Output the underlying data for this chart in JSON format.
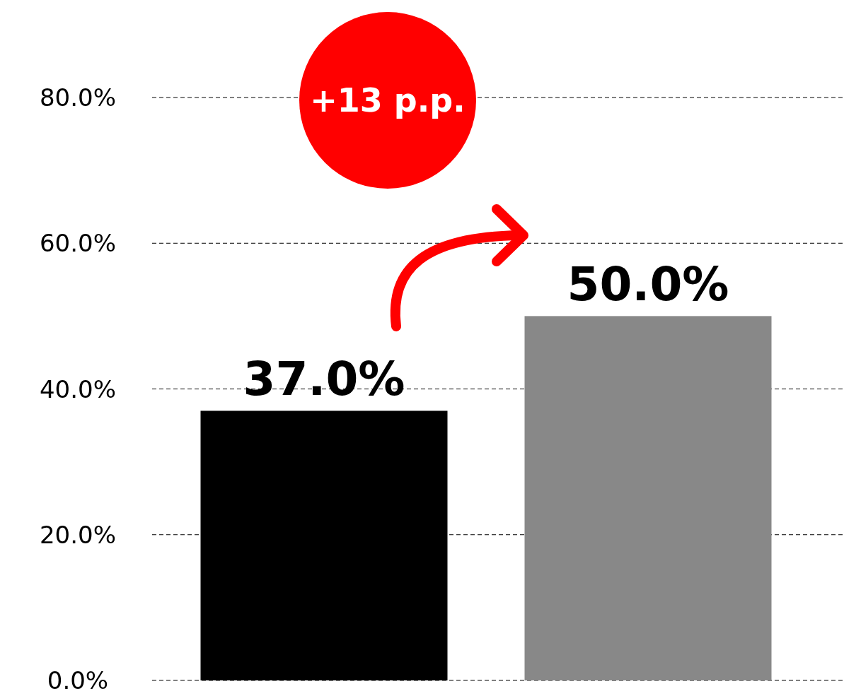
{
  "chart_data": {
    "type": "bar",
    "categories": [
      null,
      null
    ],
    "values": [
      37.0,
      50.0
    ],
    "colors": [
      "#000000",
      "#888888"
    ],
    "value_labels": [
      "37.0%",
      "50.0%"
    ],
    "ylim": [
      0,
      80
    ],
    "yticks": [
      {
        "value": 0,
        "label": "0.0%"
      },
      {
        "value": 20,
        "label": "20.0%"
      },
      {
        "value": 40,
        "label": "40.0%"
      },
      {
        "value": 60,
        "label": "60.0%"
      },
      {
        "value": 80,
        "label": "80.0%"
      }
    ],
    "grid": "y",
    "annotations": [
      "+13 p.p."
    ]
  }
}
